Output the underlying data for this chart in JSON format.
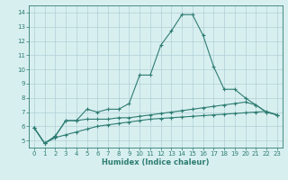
{
  "xlabel": "Humidex (Indice chaleur)",
  "x_values": [
    0,
    1,
    2,
    3,
    4,
    5,
    6,
    7,
    8,
    9,
    10,
    11,
    12,
    13,
    14,
    15,
    16,
    17,
    18,
    19,
    20,
    21,
    22,
    23
  ],
  "line1": [
    5.9,
    4.8,
    5.3,
    6.4,
    6.4,
    7.2,
    7.0,
    7.2,
    7.2,
    7.6,
    9.6,
    9.6,
    11.7,
    12.7,
    13.85,
    13.85,
    12.4,
    10.2,
    8.6,
    8.6,
    8.0,
    7.5,
    7.0,
    6.8
  ],
  "line2": [
    5.9,
    4.8,
    5.3,
    6.4,
    6.4,
    6.5,
    6.5,
    6.5,
    6.6,
    6.6,
    6.7,
    6.8,
    6.9,
    7.0,
    7.1,
    7.2,
    7.3,
    7.4,
    7.5,
    7.6,
    7.7,
    7.5,
    7.0,
    6.8
  ],
  "line3": [
    5.9,
    4.8,
    5.2,
    5.4,
    5.6,
    5.8,
    6.0,
    6.1,
    6.2,
    6.3,
    6.4,
    6.5,
    6.55,
    6.6,
    6.65,
    6.7,
    6.75,
    6.8,
    6.85,
    6.9,
    6.95,
    7.0,
    7.05,
    6.8
  ],
  "line_color": "#2e7d72",
  "bg_color": "#d8eff0",
  "grid_color": "#b0d0d5",
  "ylim": [
    4.5,
    14.5
  ],
  "xlim": [
    -0.5,
    23.5
  ],
  "yticks": [
    5,
    6,
    7,
    8,
    9,
    10,
    11,
    12,
    13,
    14
  ],
  "xticks": [
    0,
    1,
    2,
    3,
    4,
    5,
    6,
    7,
    8,
    9,
    10,
    11,
    12,
    13,
    14,
    15,
    16,
    17,
    18,
    19,
    20,
    21,
    22,
    23
  ]
}
